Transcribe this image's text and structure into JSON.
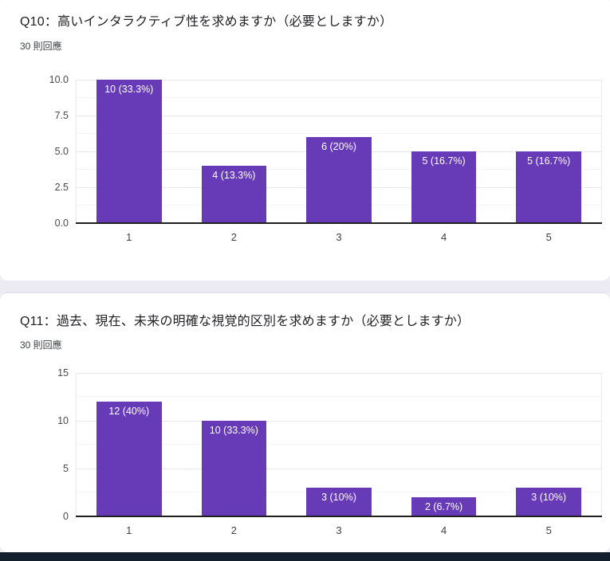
{
  "cards": [
    {
      "title": "Q10：高いインタラクティブ性を求めますか（必要としますか）",
      "responses": "30 則回應"
    },
    {
      "title": "Q11：過去、現在、未来の明確な視覚的区別を求めますか（必要としますか）",
      "responses": "30 則回應"
    }
  ],
  "chart_data": [
    {
      "type": "bar",
      "title": "Q10：高いインタラクティブ性を求めますか（必要としますか）",
      "subtitle": "30 則回應",
      "categories": [
        "1",
        "2",
        "3",
        "4",
        "5"
      ],
      "values": [
        10,
        4,
        6,
        5,
        5
      ],
      "bar_labels": [
        "10 (33.3%)",
        "4 (13.3%)",
        "6 (20%)",
        "5 (16.7%)",
        "5 (16.7%)"
      ],
      "xlabel": "",
      "ylabel": "",
      "ylim": [
        0,
        10
      ],
      "y_ticks": [
        {
          "value": 0,
          "label": "0.0"
        },
        {
          "value": 2.5,
          "label": "2.5"
        },
        {
          "value": 5,
          "label": "5.0"
        },
        {
          "value": 7.5,
          "label": "7.5"
        },
        {
          "value": 10,
          "label": "10.0"
        }
      ],
      "grid": "on",
      "legend": "none",
      "bar_color": "#673ab7"
    },
    {
      "type": "bar",
      "title": "Q11：過去、現在、未来の明確な視覚的区別を求めますか（必要としますか）",
      "subtitle": "30 則回應",
      "categories": [
        "1",
        "2",
        "3",
        "4",
        "5"
      ],
      "values": [
        12,
        10,
        3,
        2,
        3
      ],
      "bar_labels": [
        "12 (40%)",
        "10 (33.3%)",
        "3 (10%)",
        "2 (6.7%)",
        "3 (10%)"
      ],
      "xlabel": "",
      "ylabel": "",
      "ylim": [
        0,
        15
      ],
      "y_ticks": [
        {
          "value": 0,
          "label": "0"
        },
        {
          "value": 5,
          "label": "5"
        },
        {
          "value": 10,
          "label": "10"
        },
        {
          "value": 15,
          "label": "15"
        }
      ],
      "grid": "on",
      "legend": "none",
      "bar_color": "#673ab7"
    }
  ],
  "colors": {
    "bar": "#673ab7",
    "bar_label_text": "#ffffff",
    "grid_major": "#e7e6ea",
    "grid_minor": "#f4f3f7",
    "axis_baseline": "#212121",
    "card_background": "#ffffff",
    "card_gap_background": "#eceaf3",
    "footer_strip": "#141f2d",
    "title_text": "#202124"
  }
}
